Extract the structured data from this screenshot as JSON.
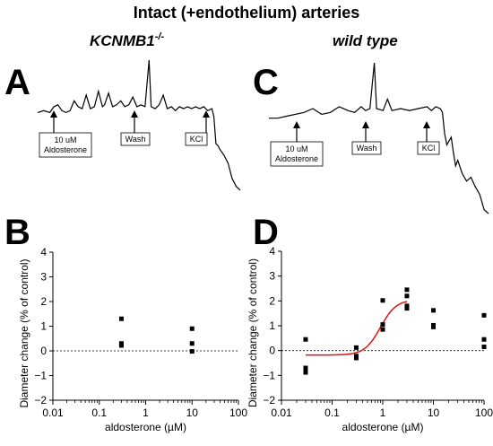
{
  "figure": {
    "title": "Intact (+endothelium) arteries",
    "left_column_title": "KCNMB1",
    "left_column_title_sup": "-/-",
    "right_column_title": "wild type",
    "panel_letters": [
      "A",
      "B",
      "C",
      "D"
    ]
  },
  "chart_data": [
    {
      "panel": "A",
      "type": "line",
      "description_trace": "vessel diameter recording",
      "annotations": [
        {
          "label": "10 uM\nAldosterone",
          "line1": "10 uM",
          "line2": "Aldosterone"
        },
        {
          "label": "Wash"
        },
        {
          "label": "KCl"
        }
      ],
      "trace": [
        [
          0,
          0.0
        ],
        [
          3,
          0.1
        ],
        [
          6,
          0.0
        ],
        [
          8,
          0.3
        ],
        [
          10,
          0.4
        ],
        [
          12,
          0.1
        ],
        [
          14,
          0.0
        ],
        [
          16,
          0.1
        ],
        [
          18,
          0.6
        ],
        [
          20,
          0.3
        ],
        [
          22,
          0.2
        ],
        [
          24,
          0.9
        ],
        [
          26,
          0.2
        ],
        [
          28,
          0.3
        ],
        [
          30,
          1.1
        ],
        [
          32,
          0.3
        ],
        [
          33,
          0.4
        ],
        [
          35,
          1.0
        ],
        [
          37,
          0.3
        ],
        [
          39,
          0.4
        ],
        [
          41,
          0.6
        ],
        [
          43,
          0.3
        ],
        [
          45,
          0.4
        ],
        [
          47,
          0.8
        ],
        [
          49,
          0.3
        ],
        [
          51,
          0.4
        ],
        [
          53,
          0.3
        ],
        [
          55,
          2.7
        ],
        [
          56,
          0.3
        ],
        [
          58,
          0.2
        ],
        [
          60,
          0.4
        ],
        [
          62,
          0.9
        ],
        [
          64,
          0.2
        ],
        [
          66,
          0.3
        ],
        [
          68,
          0.1
        ],
        [
          70,
          0.3
        ],
        [
          72,
          0.2
        ],
        [
          74,
          0.3
        ],
        [
          76,
          0.2
        ],
        [
          78,
          0.3
        ],
        [
          80,
          0.2
        ],
        [
          82,
          0.3
        ],
        [
          84,
          0.1
        ],
        [
          86,
          0.2
        ],
        [
          87,
          -0.2
        ],
        [
          88,
          -1.6
        ],
        [
          89,
          -1.7
        ],
        [
          90,
          -1.9
        ],
        [
          92,
          -2.2
        ],
        [
          94,
          -2.6
        ],
        [
          96,
          -3.4
        ],
        [
          98,
          -3.8
        ],
        [
          100,
          -4.0
        ]
      ]
    },
    {
      "panel": "C",
      "type": "line",
      "annotations": [
        {
          "label": "10 uM\nAldosterone",
          "line1": "10 uM",
          "line2": "Aldosterone"
        },
        {
          "label": "Wash"
        },
        {
          "label": "KCl"
        }
      ],
      "trace": [
        [
          0,
          0.0
        ],
        [
          4,
          0.0
        ],
        [
          8,
          0.1
        ],
        [
          12,
          0.2
        ],
        [
          16,
          0.3
        ],
        [
          20,
          0.5
        ],
        [
          24,
          0.2
        ],
        [
          28,
          0.3
        ],
        [
          32,
          0.6
        ],
        [
          36,
          0.4
        ],
        [
          39,
          0.3
        ],
        [
          42,
          0.6
        ],
        [
          44,
          0.4
        ],
        [
          46,
          0.5
        ],
        [
          48,
          2.9
        ],
        [
          49,
          0.5
        ],
        [
          52,
          0.4
        ],
        [
          54,
          1.0
        ],
        [
          56,
          0.4
        ],
        [
          60,
          0.5
        ],
        [
          64,
          0.4
        ],
        [
          68,
          0.5
        ],
        [
          72,
          0.6
        ],
        [
          74,
          0.4
        ],
        [
          76,
          0.6
        ],
        [
          78,
          0.5
        ],
        [
          79,
          0.3
        ],
        [
          80,
          -0.8
        ],
        [
          81,
          -1.4
        ],
        [
          82,
          -1.2
        ],
        [
          83,
          -1.0
        ],
        [
          84,
          -1.8
        ],
        [
          85,
          -2.5
        ],
        [
          86,
          -2.2
        ],
        [
          88,
          -2.9
        ],
        [
          90,
          -3.3
        ],
        [
          92,
          -3.1
        ],
        [
          94,
          -3.6
        ],
        [
          96,
          -4.0
        ],
        [
          98,
          -4.8
        ],
        [
          100,
          -5.0
        ]
      ]
    },
    {
      "panel": "B",
      "type": "scatter",
      "xlabel": "aldosterone (",
      "xlabel_unit": "µM",
      "xlabel_close": ")",
      "ylabel": "Diameter change (% of control)",
      "xscale": "log",
      "xlim": [
        0.01,
        100
      ],
      "ylim": [
        -2,
        4
      ],
      "xticks": [
        0.01,
        0.1,
        1,
        10,
        100
      ],
      "xtick_labels": [
        "0.01",
        "0.1",
        "1",
        "10",
        "100"
      ],
      "yticks": [
        -2,
        -1,
        0,
        1,
        2,
        3,
        4
      ],
      "ytick_labels": [
        "−2",
        "−1",
        "0",
        "1",
        "2",
        "3",
        "4"
      ],
      "zero_line": "dotted",
      "points": [
        {
          "x": 0.3,
          "y": 1.3
        },
        {
          "x": 0.3,
          "y": 0.3
        },
        {
          "x": 0.3,
          "y": 0.22
        },
        {
          "x": 10,
          "y": 0.9
        },
        {
          "x": 10,
          "y": 0.3
        },
        {
          "x": 10,
          "y": -0.02
        }
      ]
    },
    {
      "panel": "D",
      "type": "scatter",
      "xlabel": "aldosterone (",
      "xlabel_unit": "µM",
      "xlabel_close": ")",
      "ylabel": "Diameter change (% of control)",
      "xscale": "log",
      "xlim": [
        0.01,
        100
      ],
      "ylim": [
        -2,
        4
      ],
      "xticks": [
        0.01,
        0.1,
        1,
        10,
        100
      ],
      "xtick_labels": [
        "0.01",
        "0.1",
        "1",
        "10",
        "100"
      ],
      "yticks": [
        -2,
        -1,
        0,
        1,
        2,
        3,
        4
      ],
      "ytick_labels": [
        "−2",
        "−1",
        "0",
        "1",
        "2",
        "3",
        "4"
      ],
      "zero_line": "dotted",
      "fit_color": "#e01010",
      "fit": {
        "bottom": -0.18,
        "top": 2.05,
        "ec50": 0.9,
        "hill": 2.8,
        "xrange": [
          0.03,
          3
        ]
      },
      "points": [
        {
          "x": 0.03,
          "y": 0.45
        },
        {
          "x": 0.03,
          "y": -0.7
        },
        {
          "x": 0.03,
          "y": -0.88
        },
        {
          "x": 0.3,
          "y": 0.12
        },
        {
          "x": 0.3,
          "y": -0.22
        },
        {
          "x": 0.3,
          "y": -0.3
        },
        {
          "x": 1,
          "y": 2.02
        },
        {
          "x": 1,
          "y": 1.05
        },
        {
          "x": 1,
          "y": 0.85
        },
        {
          "x": 3,
          "y": 2.45
        },
        {
          "x": 3,
          "y": 2.2
        },
        {
          "x": 3,
          "y": 1.8
        },
        {
          "x": 3,
          "y": 1.7
        },
        {
          "x": 10,
          "y": 1.62
        },
        {
          "x": 10,
          "y": 1.02
        },
        {
          "x": 10,
          "y": 0.95
        },
        {
          "x": 100,
          "y": 1.42
        },
        {
          "x": 100,
          "y": 0.45
        },
        {
          "x": 100,
          "y": 0.15
        }
      ]
    }
  ]
}
